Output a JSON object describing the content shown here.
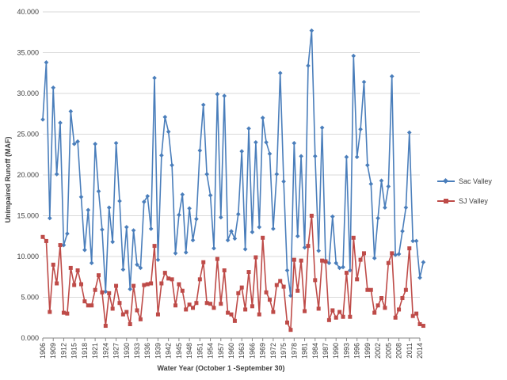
{
  "chart_data": {
    "type": "line",
    "xlabel": "Water Year (October 1 -September 30)",
    "ylabel": "Unimpaired Runoff (MAF)",
    "ylim": [
      0,
      40
    ],
    "yticks": [
      "0.000",
      "5.000",
      "10.000",
      "15.000",
      "20.000",
      "25.000",
      "30.000",
      "35.000",
      "40.000"
    ],
    "xtick_labels": [
      "1906",
      "1909",
      "1912",
      "1915",
      "1918",
      "1921",
      "1924",
      "1927",
      "1930",
      "1933",
      "1936",
      "1939",
      "1942",
      "1945",
      "1948",
      "1951",
      "1954",
      "1957",
      "1960",
      "1963",
      "1966",
      "1969",
      "1972",
      "1975",
      "1978",
      "1981",
      "1984",
      "1987",
      "1990",
      "1993",
      "1996",
      "1999",
      "2002",
      "2005",
      "2008",
      "2011",
      "2014"
    ],
    "x_start": 1906,
    "x_end": 2014,
    "grid": "horizontal",
    "legend_position": "right",
    "series": [
      {
        "name": "Sac Valley",
        "color": "#4a7ebb",
        "marker": "diamond",
        "values": [
          26.8,
          33.8,
          14.7,
          30.7,
          20.1,
          26.4,
          11.4,
          12.8,
          27.8,
          23.8,
          24.1,
          17.3,
          10.8,
          15.7,
          9.2,
          23.8,
          18.0,
          13.3,
          5.7,
          16.0,
          11.8,
          23.9,
          16.8,
          8.4,
          13.6,
          6.0,
          13.2,
          9.0,
          8.6,
          16.7,
          17.4,
          13.4,
          31.9,
          9.6,
          22.4,
          27.1,
          25.3,
          21.2,
          10.4,
          15.1,
          17.6,
          10.5,
          15.9,
          12.0,
          14.6,
          23.0,
          28.6,
          20.1,
          17.5,
          11.0,
          29.9,
          14.8,
          29.7,
          12.0,
          13.1,
          12.2,
          15.2,
          22.9,
          10.9,
          25.7,
          13.0,
          24.0,
          13.6,
          27.0,
          24.0,
          22.6,
          13.4,
          20.1,
          32.5,
          19.2,
          8.3,
          5.2,
          23.9,
          12.5,
          22.3,
          11.1,
          33.4,
          37.7,
          22.3,
          10.7,
          25.8,
          9.5,
          9.2,
          14.9,
          9.2,
          8.6,
          8.7,
          22.2,
          8.3,
          34.6,
          22.2,
          25.6,
          31.4,
          21.2,
          18.9,
          9.8,
          14.7,
          19.3,
          16.0,
          18.6,
          32.1,
          10.2,
          10.3,
          13.1,
          16.0,
          25.2,
          11.9,
          11.9,
          7.4,
          9.3
        ]
      },
      {
        "name": "SJ Valley",
        "color": "#be4b48",
        "marker": "square",
        "values": [
          12.4,
          11.9,
          3.2,
          9.0,
          6.7,
          11.4,
          3.1,
          3.0,
          8.6,
          6.5,
          8.3,
          6.6,
          4.5,
          4.0,
          4.0,
          5.9,
          7.7,
          5.6,
          1.5,
          5.5,
          3.6,
          6.4,
          4.3,
          2.9,
          3.2,
          1.7,
          6.4,
          3.4,
          2.3,
          6.5,
          6.6,
          6.7,
          11.3,
          2.9,
          6.7,
          8.0,
          7.3,
          7.2,
          4.0,
          6.6,
          5.8,
          3.5,
          4.1,
          3.7,
          4.3,
          7.2,
          9.3,
          4.3,
          4.2,
          3.7,
          9.7,
          4.2,
          8.3,
          3.1,
          2.9,
          2.1,
          5.5,
          6.2,
          3.5,
          8.1,
          3.9,
          9.9,
          2.9,
          12.3,
          5.6,
          4.7,
          3.2,
          6.5,
          7.0,
          6.3,
          1.9,
          1.0,
          9.6,
          5.8,
          9.5,
          3.3,
          11.3,
          15.0,
          7.1,
          3.6,
          9.5,
          9.4,
          2.2,
          3.4,
          2.5,
          3.2,
          2.6,
          8.0,
          2.6,
          12.3,
          7.2,
          9.6,
          10.4,
          5.9,
          5.9,
          3.1,
          4.0,
          4.9,
          3.7,
          9.2,
          10.4,
          2.5,
          3.5,
          4.9,
          5.9,
          11.0,
          2.7,
          3.0,
          1.7,
          1.5
        ]
      }
    ]
  }
}
